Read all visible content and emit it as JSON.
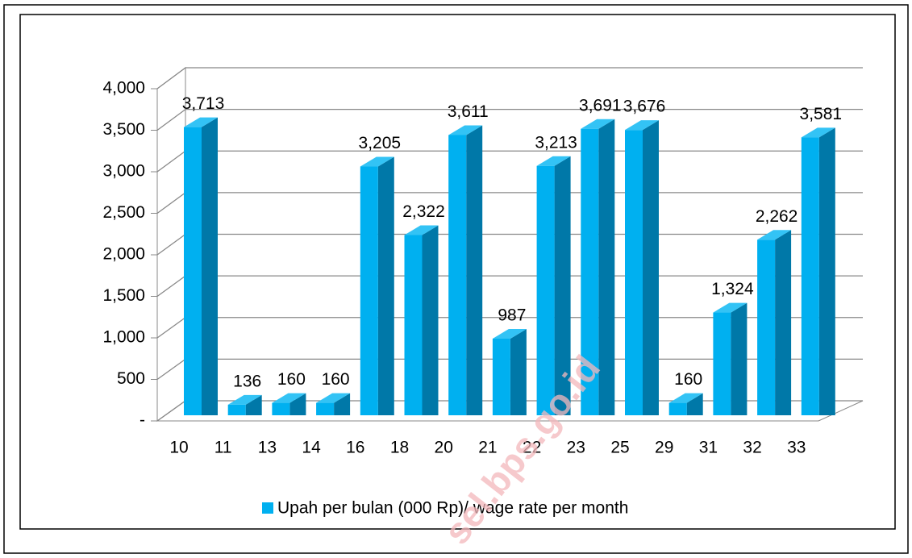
{
  "chart_data": {
    "type": "bar3d",
    "categories": [
      "10",
      "11",
      "13",
      "14",
      "16",
      "18",
      "20",
      "21",
      "22",
      "23",
      "25",
      "29",
      "31",
      "32",
      "33"
    ],
    "series": [
      {
        "name": "Upah per bulan (000 Rp)/ wage rate per month",
        "color": "#00b0f0",
        "values": [
          3713,
          136,
          160,
          160,
          3205,
          2322,
          3611,
          987,
          3213,
          3691,
          3676,
          160,
          1324,
          2262,
          3581
        ],
        "value_labels": [
          "3,713",
          "136",
          "160",
          "160",
          "3,205",
          "2,322",
          "3,611",
          "987",
          "3,213",
          "3,691",
          "3,676",
          "160",
          "1,324",
          "2,262",
          "3,581"
        ]
      }
    ],
    "ylim": [
      0,
      4000
    ],
    "yticks": [
      {
        "value": 0,
        "label": "-"
      },
      500,
      {
        "value": 1000,
        "label": "1,000"
      },
      {
        "value": 1500,
        "label": "1,500"
      },
      {
        "value": 2000,
        "label": "2,000"
      },
      {
        "value": 2500,
        "label": "2,500"
      },
      {
        "value": 3000,
        "label": "3,000"
      },
      {
        "value": 3500,
        "label": "3,500"
      },
      {
        "value": 4000,
        "label": "4,000"
      }
    ],
    "grid": true,
    "legend": "bottom",
    "watermark": "sel.bps.go.id"
  }
}
